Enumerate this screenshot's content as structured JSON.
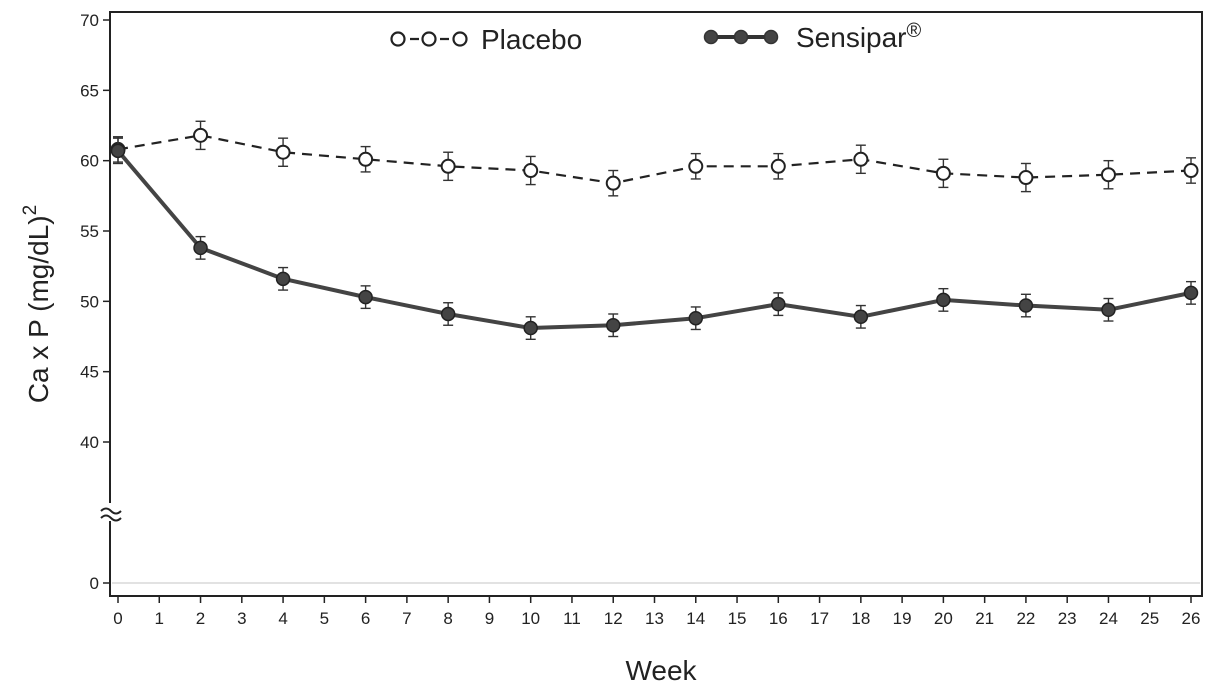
{
  "chart_data": {
    "type": "line",
    "xlabel": "Week",
    "ylabel": "Ca x P (mg/dL)",
    "ylabel_superscript": "2",
    "xlim": [
      0,
      26
    ],
    "x_ticks": [
      "0",
      "1",
      "2",
      "3",
      "4",
      "5",
      "6",
      "7",
      "8",
      "9",
      "10",
      "11",
      "12",
      "13",
      "14",
      "15",
      "16",
      "17",
      "18",
      "19",
      "20",
      "21",
      "22",
      "23",
      "24",
      "25",
      "26"
    ],
    "y_ticks": [
      "0",
      "40",
      "45",
      "50",
      "55",
      "60",
      "65",
      "70"
    ],
    "y_axis_break": true,
    "grid": false,
    "legend_position": "top",
    "legend": [
      {
        "label": "Placebo",
        "marker": "open-circle",
        "line": "dashed"
      },
      {
        "label": "Sensipar",
        "superscript": "®",
        "marker": "filled-circle",
        "line": "solid"
      }
    ],
    "series": [
      {
        "name": "Placebo",
        "color": "#333333",
        "x": [
          0,
          2,
          4,
          6,
          8,
          10,
          12,
          14,
          16,
          18,
          20,
          22,
          24,
          26
        ],
        "y": [
          60.8,
          61.8,
          60.6,
          60.1,
          59.6,
          59.3,
          58.4,
          59.6,
          59.6,
          60.1,
          59.1,
          58.8,
          59.0,
          59.3
        ],
        "error": [
          0.9,
          1.0,
          1.0,
          0.9,
          1.0,
          1.0,
          0.9,
          0.9,
          0.9,
          1.0,
          1.0,
          1.0,
          1.0,
          0.9
        ]
      },
      {
        "name": "Sensipar",
        "color": "#333333",
        "x": [
          0,
          2,
          4,
          6,
          8,
          10,
          12,
          14,
          16,
          18,
          20,
          22,
          24,
          26
        ],
        "y": [
          60.7,
          53.8,
          51.6,
          50.3,
          49.1,
          48.1,
          48.3,
          48.8,
          49.8,
          48.9,
          50.1,
          49.7,
          49.4,
          50.6
        ],
        "error": [
          0.9,
          0.8,
          0.8,
          0.8,
          0.8,
          0.8,
          0.8,
          0.8,
          0.8,
          0.8,
          0.8,
          0.8,
          0.8,
          0.8
        ]
      }
    ]
  }
}
